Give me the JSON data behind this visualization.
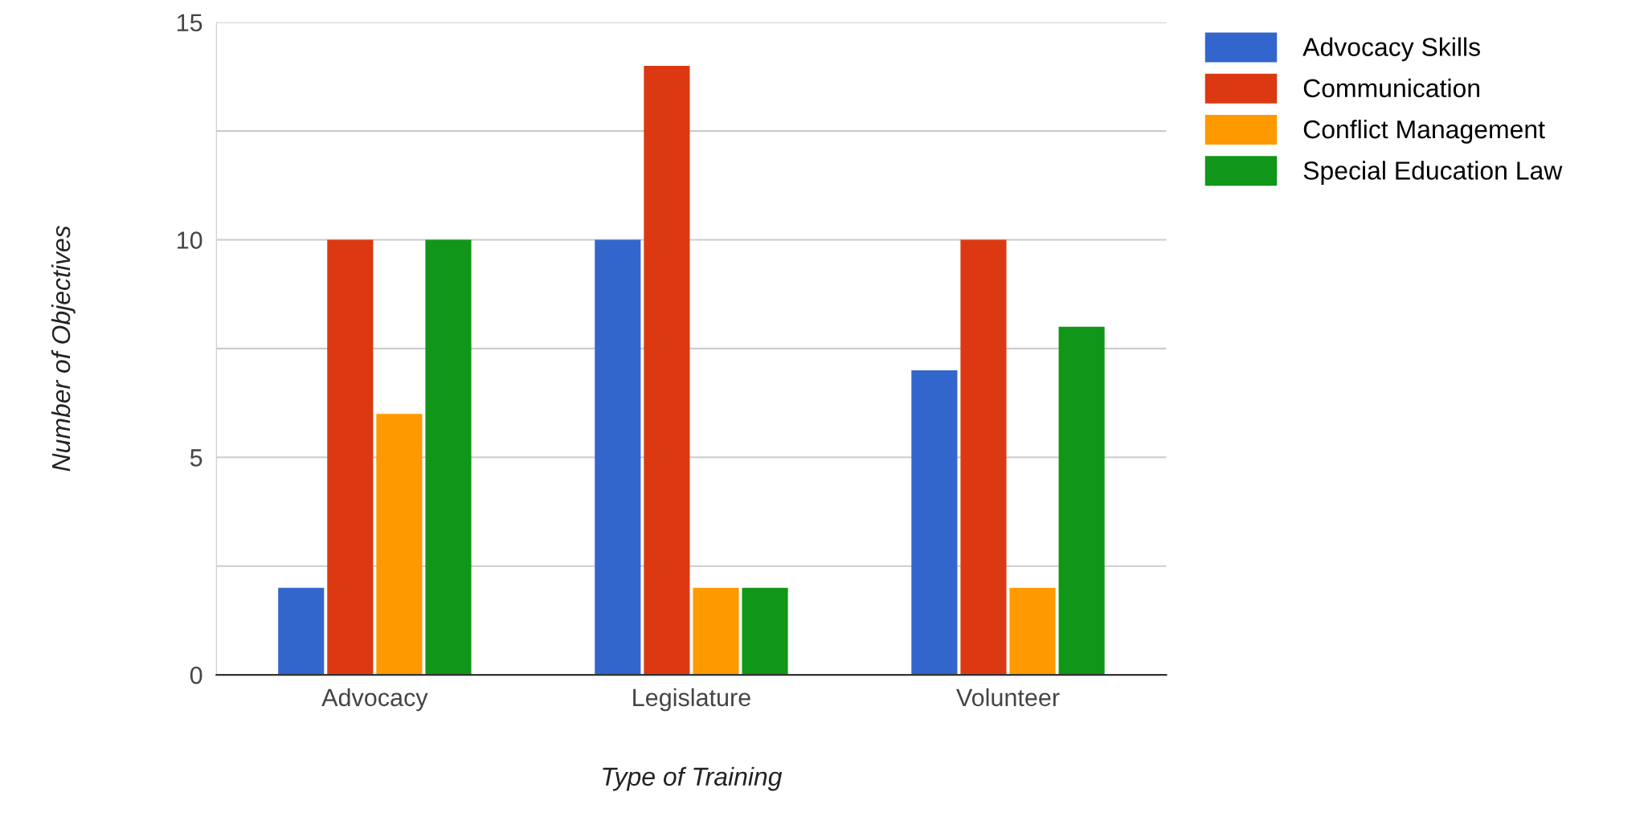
{
  "chart_data": {
    "type": "bar",
    "xlabel": "Type of Training",
    "ylabel": "Number of Objectives",
    "categories": [
      "Advocacy",
      "Legislature",
      "Volunteer"
    ],
    "series": [
      {
        "name": "Advocacy Skills",
        "color": "#3366cc",
        "values": [
          2,
          10,
          7
        ]
      },
      {
        "name": "Communication",
        "color": "#dc3912",
        "values": [
          10,
          14,
          10
        ]
      },
      {
        "name": "Conflict Management",
        "color": "#ff9900",
        "values": [
          6,
          2,
          2
        ]
      },
      {
        "name": "Special Education Law",
        "color": "#109618",
        "values": [
          10,
          2,
          8
        ]
      }
    ],
    "ylim": [
      0,
      15
    ],
    "yticks": [
      0,
      {
        "value": 2.5,
        "label": null
      },
      5,
      {
        "value": 7.5,
        "label": null
      },
      10,
      {
        "value": 12.5,
        "label": null
      },
      15
    ],
    "grid": "y",
    "legend": "top right"
  }
}
